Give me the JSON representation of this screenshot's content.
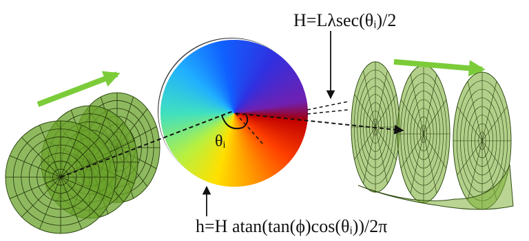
{
  "labels": {
    "pitch": "H=Lλsec(θᵢ)/2",
    "angle": "θᵢ",
    "height": "h=H atan(tan(ϕ)cos(θᵢ))/2π"
  }
}
